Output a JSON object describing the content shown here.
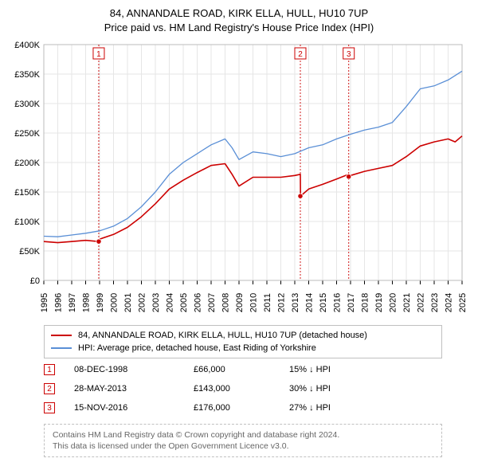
{
  "title": {
    "line1": "84, ANNANDALE ROAD, KIRK ELLA, HULL, HU10 7UP",
    "line2": "Price paid vs. HM Land Registry's House Price Index (HPI)"
  },
  "chart": {
    "type": "line",
    "background": "#ffffff",
    "plot_border_color": "#bbbbbb",
    "grid_color": "#e6e6e6",
    "x": {
      "min": 1995,
      "max": 2025,
      "ticks": [
        1995,
        1996,
        1997,
        1998,
        1999,
        2000,
        2001,
        2002,
        2003,
        2004,
        2005,
        2006,
        2007,
        2008,
        2009,
        2010,
        2011,
        2012,
        2013,
        2014,
        2015,
        2016,
        2017,
        2018,
        2019,
        2020,
        2021,
        2022,
        2023,
        2024,
        2025
      ],
      "tick_label_rotation": -90,
      "tick_fontsize": 11
    },
    "y": {
      "min": 0,
      "max": 400000,
      "ticks": [
        0,
        50000,
        100000,
        150000,
        200000,
        250000,
        300000,
        350000,
        400000
      ],
      "tick_labels": [
        "£0",
        "£50K",
        "£100K",
        "£150K",
        "£200K",
        "£250K",
        "£300K",
        "£350K",
        "£400K"
      ],
      "tick_fontsize": 11
    },
    "series": [
      {
        "name": "price_paid",
        "label": "84, ANNANDALE ROAD, KIRK ELLA, HULL, HU10 7UP (detached house)",
        "color": "#cc0000",
        "line_width": 1.6,
        "x": [
          1995,
          1996,
          1997,
          1998,
          1998.94,
          1999,
          2000,
          2001,
          2002,
          2003,
          2004,
          2005,
          2006,
          2007,
          2008,
          2008.5,
          2009,
          2010,
          2011,
          2012,
          2013,
          2013.4,
          2013.41,
          2014,
          2015,
          2016,
          2016.87,
          2016.88,
          2017,
          2018,
          2019,
          2020,
          2021,
          2022,
          2023,
          2024,
          2024.5,
          2025
        ],
        "y": [
          66000,
          64000,
          66000,
          68000,
          66000,
          70000,
          78000,
          90000,
          108000,
          130000,
          155000,
          170000,
          183000,
          195000,
          198000,
          180000,
          160000,
          175000,
          175000,
          175000,
          178000,
          180000,
          143000,
          155000,
          163000,
          172000,
          180000,
          176000,
          178000,
          185000,
          190000,
          195000,
          210000,
          228000,
          235000,
          240000,
          235000,
          245000
        ]
      },
      {
        "name": "hpi",
        "label": "HPI: Average price, detached house, East Riding of Yorkshire",
        "color": "#5a8fd6",
        "line_width": 1.3,
        "x": [
          1995,
          1996,
          1997,
          1998,
          1999,
          2000,
          2001,
          2002,
          2003,
          2004,
          2005,
          2006,
          2007,
          2008,
          2008.5,
          2009,
          2010,
          2011,
          2012,
          2013,
          2014,
          2015,
          2016,
          2017,
          2018,
          2019,
          2020,
          2021,
          2022,
          2023,
          2024,
          2025
        ],
        "y": [
          75000,
          74000,
          77000,
          80000,
          84000,
          92000,
          105000,
          125000,
          150000,
          180000,
          200000,
          215000,
          230000,
          240000,
          225000,
          205000,
          218000,
          215000,
          210000,
          215000,
          225000,
          230000,
          240000,
          248000,
          255000,
          260000,
          268000,
          295000,
          325000,
          330000,
          340000,
          355000
        ]
      }
    ],
    "event_markers": [
      {
        "n": "1",
        "x": 1998.94,
        "y": 66000,
        "line_color": "#cc0000",
        "dash": "2,2"
      },
      {
        "n": "2",
        "x": 2013.4,
        "y": 143000,
        "line_color": "#cc0000",
        "dash": "2,2"
      },
      {
        "n": "3",
        "x": 2016.87,
        "y": 176000,
        "line_color": "#cc0000",
        "dash": "2,2"
      }
    ]
  },
  "legend": {
    "border_color": "#c0c0c0",
    "fontsize": 11,
    "items": [
      {
        "color": "#cc0000",
        "label": "84, ANNANDALE ROAD, KIRK ELLA, HULL, HU10 7UP (detached house)"
      },
      {
        "color": "#5a8fd6",
        "label": "HPI: Average price, detached house, East Riding of Yorkshire"
      }
    ]
  },
  "events": [
    {
      "n": "1",
      "date": "08-DEC-1998",
      "price": "£66,000",
      "delta": "15% ↓ HPI"
    },
    {
      "n": "2",
      "date": "28-MAY-2013",
      "price": "£143,000",
      "delta": "30% ↓ HPI"
    },
    {
      "n": "3",
      "date": "15-NOV-2016",
      "price": "£176,000",
      "delta": "27% ↓ HPI"
    }
  ],
  "footer": {
    "line1": "Contains HM Land Registry data © Crown copyright and database right 2024.",
    "line2": "This data is licensed under the Open Government Licence v3.0.",
    "border_color": "#c0c0c0",
    "text_color": "#666666"
  }
}
